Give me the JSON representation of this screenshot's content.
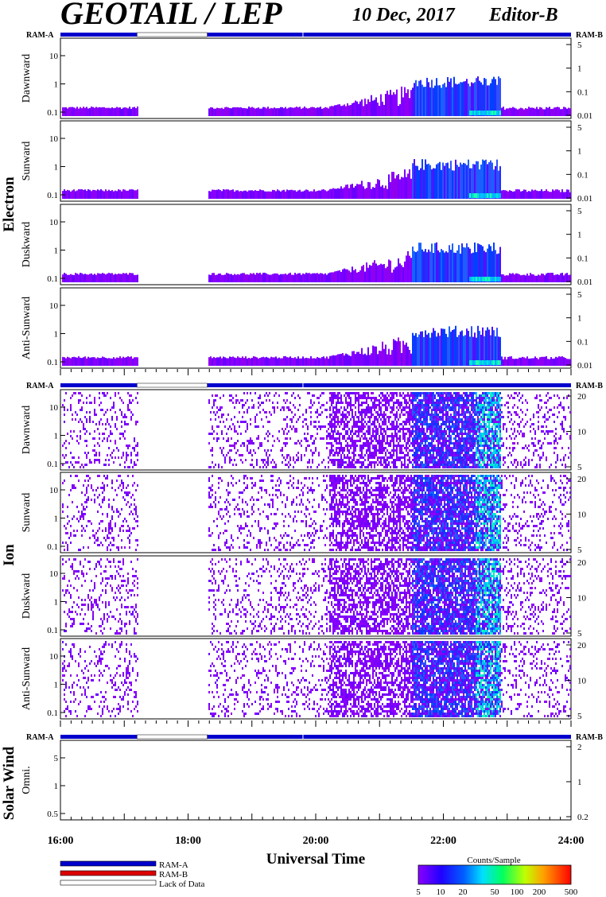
{
  "header": {
    "title": "GEOTAIL / LEP",
    "date": "10 Dec, 2017",
    "editor": "Editor-B"
  },
  "ram_labels": {
    "a": "RAM-A",
    "b": "RAM-B"
  },
  "colors": {
    "ram_a": "#0000cc",
    "ram_b": "#dd0000",
    "lack_of_data": "#ffffff"
  },
  "legend": {
    "items": [
      {
        "label": "RAM-A",
        "color": "#0000cc"
      },
      {
        "label": "RAM-B",
        "color": "#dd0000"
      },
      {
        "label": "Lack of Data",
        "color": "#ffffff"
      }
    ]
  },
  "colorbar": {
    "title": "Counts/Sample",
    "ticks": [
      "5",
      "10",
      "20",
      "50",
      "100",
      "200",
      "500"
    ]
  },
  "chart_data": {
    "type": "heatmap",
    "xlabel": "Universal Time",
    "x_ticks": [
      "16:00",
      "18:00",
      "20:00",
      "22:00",
      "24:00"
    ],
    "x_range_hours": [
      16,
      24
    ],
    "data_gap_hours": [
      17.2,
      18.3
    ],
    "groups": [
      {
        "name": "Electron",
        "panels": [
          {
            "label": "Dawnward",
            "left_ticks": [
              "10",
              "1",
              "0.1"
            ],
            "right_ticks": [
              "5",
              "1",
              "0.1",
              "0.01"
            ]
          },
          {
            "label": "Sunward",
            "left_ticks": [
              "10",
              "1",
              "0.1"
            ],
            "right_ticks": [
              "5",
              "1",
              "0.1",
              "0.01"
            ]
          },
          {
            "label": "Duskward",
            "left_ticks": [
              "10",
              "1",
              "0.1"
            ],
            "right_ticks": [
              "5",
              "1",
              "0.1",
              "0.01"
            ]
          },
          {
            "label": "Anti-Sunward",
            "left_ticks": [
              "10",
              "1",
              "0.1"
            ],
            "right_ticks": [
              "5",
              "1",
              "0.1",
              "0.01"
            ]
          }
        ]
      },
      {
        "name": "Ion",
        "panels": [
          {
            "label": "Dawnward",
            "left_ticks": [
              "10",
              "1",
              "0.1"
            ],
            "right_ticks": [
              "20",
              "10",
              "5"
            ]
          },
          {
            "label": "Sunward",
            "left_ticks": [
              "10",
              "1",
              "0.1"
            ],
            "right_ticks": [
              "20",
              "10",
              "5"
            ]
          },
          {
            "label": "Duskward",
            "left_ticks": [
              "10",
              "1",
              "0.1"
            ],
            "right_ticks": [
              "20",
              "10",
              "5"
            ]
          },
          {
            "label": "Anti-Sunward",
            "left_ticks": [
              "10",
              "1",
              "0.1"
            ],
            "right_ticks": [
              "20",
              "10",
              "5"
            ]
          }
        ]
      },
      {
        "name": "Solar Wind",
        "panels": [
          {
            "label": "Omni.",
            "left_ticks": [
              "5",
              "1",
              "0.5"
            ],
            "right_ticks": [
              "2",
              "1",
              "0.2"
            ]
          }
        ]
      }
    ]
  }
}
